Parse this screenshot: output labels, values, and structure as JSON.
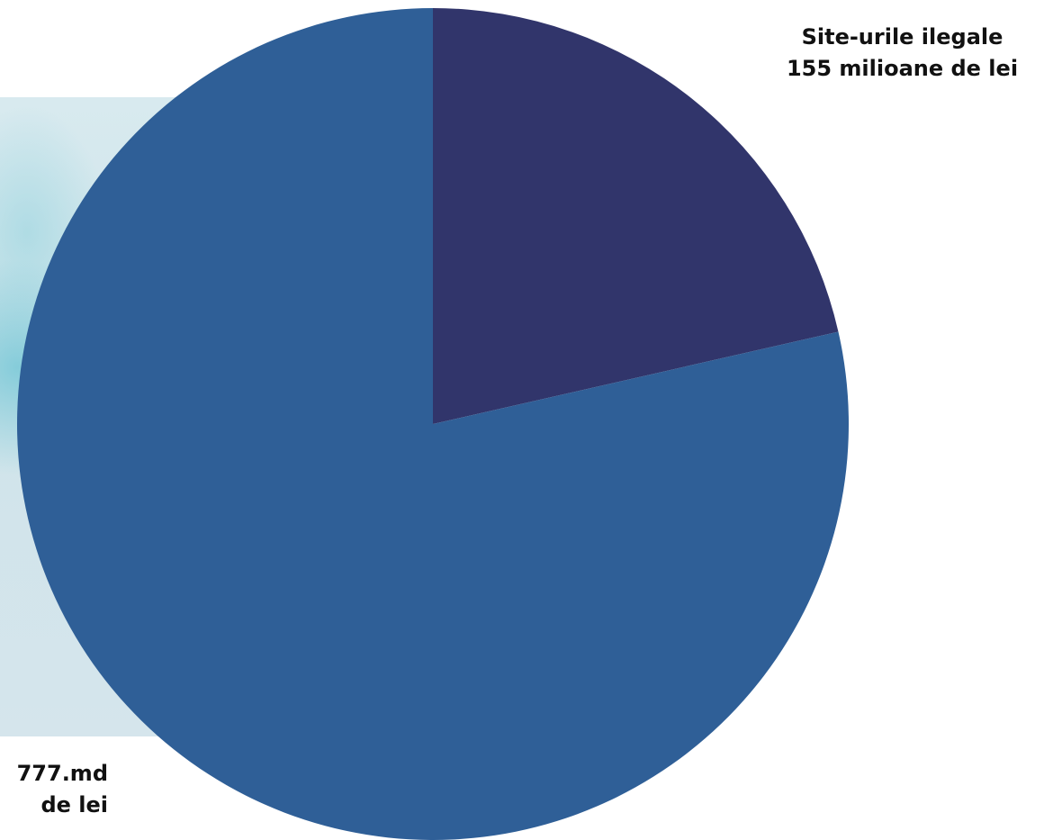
{
  "chart_data": {
    "type": "pie",
    "start_angle_deg": 0,
    "direction": "clockwise",
    "slices": [
      {
        "name": "Site-urile ilegale",
        "value": 155,
        "label_lines": [
          "Site-urile ilegale",
          "155 milioane de lei"
        ],
        "color": "#31356b"
      },
      {
        "name": "777.md",
        "value": 568,
        "label_lines": [
          "777.md",
          "de lei"
        ],
        "color": "#2f5f97"
      }
    ]
  }
}
